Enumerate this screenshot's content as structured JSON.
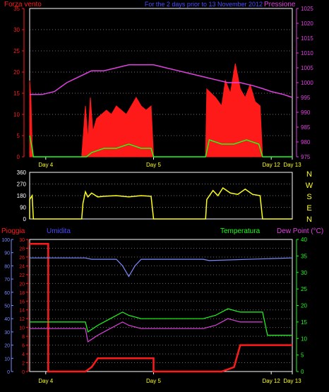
{
  "colors": {
    "background": "#000000",
    "frame": "#ffffff",
    "grid": "#6e6e6e",
    "red": "#ff1a1a",
    "magenta": "#e040e0",
    "blue": "#4a4aff",
    "yellow": "#ffff1a",
    "green": "#1aff1a",
    "periwinkle": "#7a8cff",
    "white": "#ffffff"
  },
  "chart_data": [
    {
      "id": "wind",
      "type": "line",
      "title": "For the 2 days prior to  13 November 2012",
      "left_axis_label": "Forza vento",
      "right_axis_label": "Pressione",
      "y_left_ticks": [
        "35",
        "30",
        "25",
        "20",
        "15",
        "10",
        "5",
        "0"
      ],
      "y_left_range": [
        0,
        35
      ],
      "y_right_ticks": [
        "1025",
        "1020",
        "1015",
        "1010",
        "1005",
        "1000",
        "995",
        "990",
        "985",
        "980",
        "975"
      ],
      "y_right_range": [
        975,
        1025
      ],
      "x_range_days": [
        0,
        2.12
      ],
      "x_ticks": [
        {
          "label": "Day 4",
          "x": 0.13
        },
        {
          "label": "Day 5",
          "x": 1.0
        },
        {
          "label": "Day 12",
          "x": 1.95
        },
        {
          "label": "Day 13",
          "x": 2.12
        }
      ],
      "series": [
        {
          "name": "",
          "color": "red",
          "style": "spiky",
          "points": [
            [
              0,
              18
            ],
            [
              0.01,
              14
            ],
            [
              0.02,
              3
            ],
            [
              0.03,
              0
            ],
            [
              0.42,
              0
            ],
            [
              0.43,
              4
            ],
            [
              0.45,
              12
            ],
            [
              0.47,
              4
            ],
            [
              0.49,
              14
            ],
            [
              0.51,
              6
            ],
            [
              0.54,
              9
            ],
            [
              0.58,
              10
            ],
            [
              0.62,
              11
            ],
            [
              0.66,
              10
            ],
            [
              0.7,
              12
            ],
            [
              0.74,
              11
            ],
            [
              0.78,
              10
            ],
            [
              0.82,
              12
            ],
            [
              0.86,
              14
            ],
            [
              0.9,
              12
            ],
            [
              0.94,
              11
            ],
            [
              0.98,
              12
            ],
            [
              1.0,
              0
            ],
            [
              1.42,
              0
            ],
            [
              1.43,
              16
            ],
            [
              1.5,
              14
            ],
            [
              1.55,
              12
            ],
            [
              1.58,
              18
            ],
            [
              1.62,
              15
            ],
            [
              1.66,
              22
            ],
            [
              1.7,
              16
            ],
            [
              1.74,
              14
            ],
            [
              1.78,
              17
            ],
            [
              1.82,
              13
            ],
            [
              1.86,
              12
            ],
            [
              1.88,
              0
            ],
            [
              2.12,
              0
            ]
          ]
        },
        {
          "name": "",
          "color": "green",
          "style": "line",
          "points": [
            [
              0,
              5
            ],
            [
              0.02,
              2
            ],
            [
              0.03,
              0
            ],
            [
              0.46,
              0
            ],
            [
              0.5,
              1
            ],
            [
              0.6,
              2
            ],
            [
              0.7,
              2
            ],
            [
              0.8,
              3
            ],
            [
              0.9,
              2
            ],
            [
              0.98,
              2
            ],
            [
              1.0,
              0
            ],
            [
              1.42,
              0
            ],
            [
              1.45,
              4
            ],
            [
              1.55,
              3
            ],
            [
              1.65,
              3
            ],
            [
              1.75,
              4
            ],
            [
              1.85,
              3
            ],
            [
              1.88,
              0
            ],
            [
              2.12,
              0
            ]
          ]
        },
        {
          "name": "",
          "color": "magenta",
          "axis": "right",
          "style": "line",
          "points": [
            [
              0,
              996
            ],
            [
              0.1,
              996
            ],
            [
              0.2,
              997
            ],
            [
              0.3,
              1000
            ],
            [
              0.4,
              1002
            ],
            [
              0.5,
              1004
            ],
            [
              0.6,
              1004
            ],
            [
              0.7,
              1005
            ],
            [
              0.8,
              1006
            ],
            [
              0.9,
              1006
            ],
            [
              1.0,
              1006
            ],
            [
              1.1,
              1005
            ],
            [
              1.2,
              1004
            ],
            [
              1.3,
              1003
            ],
            [
              1.4,
              1002
            ],
            [
              1.5,
              1001
            ],
            [
              1.6,
              1000
            ],
            [
              1.7,
              1000
            ],
            [
              1.8,
              999
            ],
            [
              1.88,
              998
            ],
            [
              1.95,
              997
            ],
            [
              2.05,
              996
            ],
            [
              2.12,
              995
            ]
          ]
        }
      ]
    },
    {
      "id": "direction",
      "type": "line",
      "y_left_ticks": [
        "360",
        "270",
        "180",
        "90",
        "0"
      ],
      "y_range": [
        0,
        360
      ],
      "compass_labels": [
        "N",
        "W",
        "S",
        "E",
        "N"
      ],
      "x_range_days": [
        0,
        2.12
      ],
      "series": [
        {
          "name": "",
          "color": "yellow",
          "style": "spiky",
          "points": [
            [
              0,
              150
            ],
            [
              0.02,
              180
            ],
            [
              0.03,
              0
            ],
            [
              0.42,
              0
            ],
            [
              0.43,
              120
            ],
            [
              0.45,
              210
            ],
            [
              0.47,
              170
            ],
            [
              0.5,
              200
            ],
            [
              0.55,
              170
            ],
            [
              0.6,
              175
            ],
            [
              0.7,
              180
            ],
            [
              0.8,
              170
            ],
            [
              0.9,
              180
            ],
            [
              0.98,
              175
            ],
            [
              1.0,
              0
            ],
            [
              1.42,
              0
            ],
            [
              1.43,
              150
            ],
            [
              1.48,
              220
            ],
            [
              1.52,
              180
            ],
            [
              1.56,
              240
            ],
            [
              1.62,
              200
            ],
            [
              1.68,
              190
            ],
            [
              1.74,
              230
            ],
            [
              1.8,
              190
            ],
            [
              1.86,
              180
            ],
            [
              1.88,
              0
            ],
            [
              2.12,
              0
            ]
          ]
        }
      ]
    },
    {
      "id": "rain",
      "type": "line",
      "labels": [
        "Pioggia",
        "Umidita",
        "Temperatura",
        "Dew Point (°C)"
      ],
      "y_left_outer_ticks": [
        "100",
        "90",
        "80",
        "70",
        "60",
        "50",
        "40",
        "30",
        "20",
        "10",
        "0"
      ],
      "y_left_outer_range": [
        0,
        100
      ],
      "y_left_inner_ticks": [
        "30",
        "28",
        "26",
        "24",
        "22",
        "20",
        "18",
        "16",
        "14",
        "12",
        "10",
        "8",
        "6",
        "4",
        "2",
        "0"
      ],
      "y_left_inner_range": [
        0,
        30
      ],
      "y_right_ticks": [
        "40",
        "35",
        "30",
        "25",
        "20",
        "15",
        "10",
        "5",
        "0"
      ],
      "y_right_range": [
        0,
        40
      ],
      "x_range_days": [
        0,
        2.12
      ],
      "x_ticks": [
        {
          "label": "Day 4",
          "x": 0.13
        },
        {
          "label": "Day 5",
          "x": 1.0
        },
        {
          "label": "Day 12",
          "x": 1.95
        },
        {
          "label": "Day 13",
          "x": 2.12
        }
      ],
      "series": [
        {
          "name": "Pioggia",
          "color": "red",
          "axis": "inner",
          "style": "step",
          "points": [
            [
              0,
              29
            ],
            [
              0.15,
              29
            ],
            [
              0.15,
              0
            ],
            [
              0.45,
              0
            ],
            [
              0.5,
              1
            ],
            [
              0.55,
              3
            ],
            [
              1.0,
              3
            ],
            [
              1.0,
              0
            ],
            [
              1.55,
              0
            ],
            [
              1.65,
              1
            ],
            [
              1.7,
              6
            ],
            [
              2.12,
              6
            ]
          ]
        },
        {
          "name": "Umidita",
          "color": "periwinkle",
          "axis": "outer",
          "style": "line",
          "points": [
            [
              0,
              86
            ],
            [
              0.45,
              86
            ],
            [
              0.5,
              85
            ],
            [
              0.7,
              85
            ],
            [
              0.75,
              80
            ],
            [
              0.8,
              72
            ],
            [
              0.85,
              80
            ],
            [
              0.9,
              85
            ],
            [
              1.4,
              85
            ],
            [
              1.45,
              84
            ],
            [
              2.12,
              86
            ]
          ]
        },
        {
          "name": "Temperatura",
          "color": "green",
          "axis": "right",
          "style": "line",
          "points": [
            [
              0,
              15
            ],
            [
              0.45,
              15
            ],
            [
              0.47,
              12
            ],
            [
              0.55,
              14
            ],
            [
              0.65,
              16
            ],
            [
              0.75,
              18
            ],
            [
              0.8,
              17
            ],
            [
              0.9,
              16
            ],
            [
              1.4,
              16
            ],
            [
              1.5,
              17
            ],
            [
              1.6,
              19
            ],
            [
              1.7,
              18
            ],
            [
              1.88,
              18
            ],
            [
              1.92,
              11
            ],
            [
              2.12,
              11
            ]
          ]
        },
        {
          "name": "Dew Point (°C)",
          "color": "magenta",
          "axis": "right",
          "style": "line",
          "points": [
            [
              0,
              13
            ],
            [
              0.45,
              13
            ],
            [
              0.47,
              9
            ],
            [
              0.55,
              11
            ],
            [
              0.65,
              13
            ],
            [
              0.75,
              15
            ],
            [
              0.8,
              14
            ],
            [
              0.9,
              13
            ],
            [
              1.4,
              13
            ],
            [
              1.5,
              14
            ],
            [
              1.6,
              16
            ],
            [
              1.7,
              15
            ],
            [
              1.88,
              15
            ]
          ]
        }
      ]
    }
  ]
}
